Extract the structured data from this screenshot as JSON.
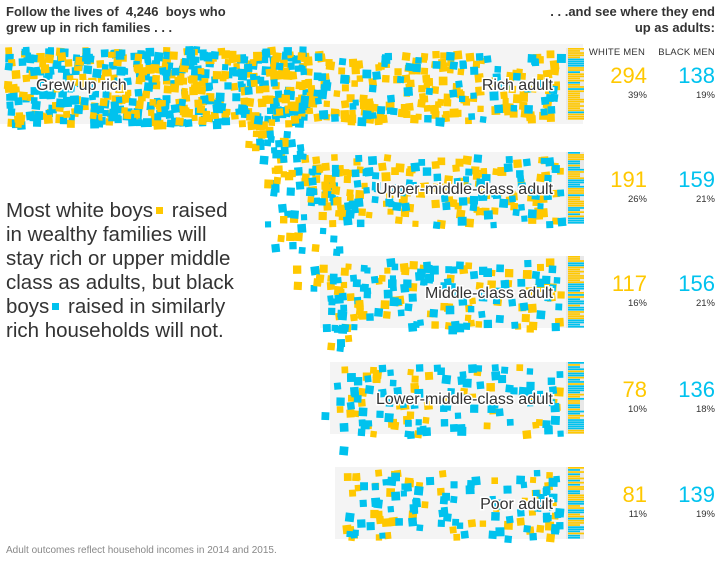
{
  "header": {
    "left_line1_prefix": "Follow the lives of",
    "left_count": "4,246",
    "left_line1_suffix": "boys who",
    "left_line2": "grew up in rich families . . .",
    "right_line1": ". . .and see where they end",
    "right_line2": "up as adults:"
  },
  "columns": {
    "white": "WHITE MEN",
    "black": "BLACK MEN"
  },
  "colors": {
    "white": "#ffc800",
    "black": "#00c2ee",
    "band": "#f4f4f4",
    "text": "#333333"
  },
  "summary": {
    "part1": "Most white boys",
    "part2": "raised in wealthy families will stay rich or upper middle class as adults, but black boys",
    "part3": "raised in similarly rich households will not."
  },
  "footnote": "Adult outcomes reflect household incomes in 2014 and 2015.",
  "chart_data": {
    "type": "table",
    "title": "Follow the lives of 4,246 boys who grew up in rich families ... and see where they end up as adults",
    "origin_label": "Grew up rich",
    "series": [
      {
        "name": "White men",
        "color": "#ffc800"
      },
      {
        "name": "Black men",
        "color": "#00c2ee"
      }
    ],
    "outcomes": [
      {
        "label": "Rich adult",
        "white_count": 294,
        "white_pct": "39%",
        "black_count": 138,
        "black_pct": "19%"
      },
      {
        "label": "Upper-middle-class adult",
        "white_count": 191,
        "white_pct": "26%",
        "black_count": 159,
        "black_pct": "21%"
      },
      {
        "label": "Middle-class adult",
        "white_count": 117,
        "white_pct": "16%",
        "black_count": 156,
        "black_pct": "21%"
      },
      {
        "label": "Lower-middle-class adult",
        "white_count": 78,
        "white_pct": "10%",
        "black_count": 136,
        "black_pct": "18%"
      },
      {
        "label": "Poor adult",
        "white_count": 81,
        "white_pct": "11%",
        "black_count": 139,
        "black_pct": "19%"
      }
    ]
  }
}
